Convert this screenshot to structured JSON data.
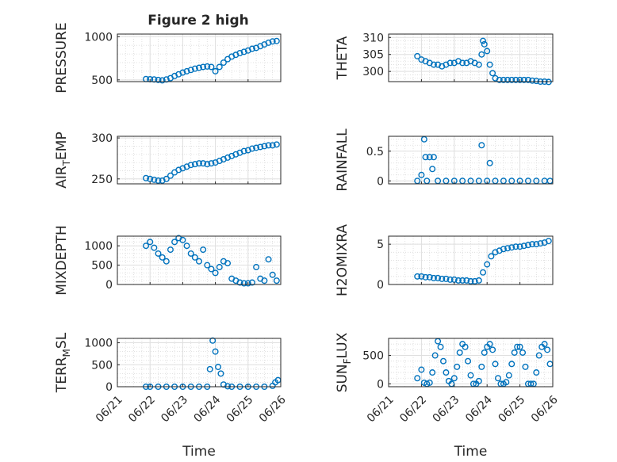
{
  "figure": {
    "title": "Figure 2 high",
    "marker_color": "#0072BD"
  },
  "chart_data": [
    {
      "type": "scatter",
      "ylabel": "PRESSURE",
      "xlim": [
        "06/21",
        "06/26"
      ],
      "ylim": [
        480,
        1030
      ],
      "yticks": [
        500,
        1000
      ],
      "xtick_labels": [],
      "x": [
        "06/21 21:00",
        "06/22 00:00",
        "06/22 03:00",
        "06/22 06:00",
        "06/22 09:00",
        "06/22 12:00",
        "06/22 15:00",
        "06/22 18:00",
        "06/22 21:00",
        "06/23 00:00",
        "06/23 03:00",
        "06/23 06:00",
        "06/23 09:00",
        "06/23 12:00",
        "06/23 15:00",
        "06/23 18:00",
        "06/23 21:00",
        "06/24 00:00",
        "06/24 03:00",
        "06/24 06:00",
        "06/24 09:00",
        "06/24 12:00",
        "06/24 15:00",
        "06/24 18:00",
        "06/24 21:00",
        "06/25 00:00",
        "06/25 03:00",
        "06/25 06:00",
        "06/25 09:00",
        "06/25 12:00",
        "06/25 15:00",
        "06/25 18:00",
        "06/25 21:00"
      ],
      "y": [
        510,
        508,
        505,
        500,
        495,
        505,
        520,
        545,
        565,
        585,
        600,
        615,
        630,
        640,
        650,
        655,
        650,
        600,
        650,
        700,
        740,
        770,
        790,
        810,
        825,
        840,
        860,
        870,
        890,
        910,
        930,
        945,
        950
      ]
    },
    {
      "type": "scatter",
      "ylabel": "THETA",
      "xlim": [
        "06/21",
        "06/26"
      ],
      "ylim": [
        297,
        311
      ],
      "yticks": [
        300,
        305,
        310
      ],
      "xtick_labels": [],
      "x": [
        "06/21 21:00",
        "06/22 00:00",
        "06/22 03:00",
        "06/22 06:00",
        "06/22 09:00",
        "06/22 12:00",
        "06/22 15:00",
        "06/22 18:00",
        "06/22 21:00",
        "06/23 00:00",
        "06/23 03:00",
        "06/23 06:00",
        "06/23 09:00",
        "06/23 12:00",
        "06/23 15:00",
        "06/23 18:00",
        "06/23 20:00",
        "06/23 21:00",
        "06/23 22:00",
        "06/24 00:00",
        "06/24 02:00",
        "06/24 04:00",
        "06/24 06:00",
        "06/24 09:00",
        "06/24 12:00",
        "06/24 15:00",
        "06/24 18:00",
        "06/24 21:00",
        "06/25 00:00",
        "06/25 03:00",
        "06/25 06:00",
        "06/25 09:00",
        "06/25 12:00",
        "06/25 15:00",
        "06/25 18:00",
        "06/25 21:00"
      ],
      "y": [
        304.5,
        303.5,
        303,
        302.5,
        302,
        302,
        301.5,
        302,
        302.5,
        302.5,
        303,
        302.5,
        302.5,
        303,
        302.5,
        302,
        305,
        309,
        308,
        306,
        302,
        299.5,
        298,
        297.5,
        297.5,
        297.5,
        297.5,
        297.5,
        297.5,
        297.5,
        297.5,
        297.3,
        297.2,
        297,
        297,
        296.9
      ]
    },
    {
      "type": "scatter",
      "ylabel": "AIR_TEMP",
      "ylabel_main": "AIR",
      "ylabel_sub": "T",
      "ylabel_tail": "EMP",
      "xlim": [
        "06/21",
        "06/26"
      ],
      "ylim": [
        244,
        302
      ],
      "yticks": [
        250,
        300
      ],
      "xtick_labels": [],
      "x": [
        "06/21 21:00",
        "06/22 00:00",
        "06/22 03:00",
        "06/22 06:00",
        "06/22 09:00",
        "06/22 12:00",
        "06/22 15:00",
        "06/22 18:00",
        "06/22 21:00",
        "06/23 00:00",
        "06/23 03:00",
        "06/23 06:00",
        "06/23 09:00",
        "06/23 12:00",
        "06/23 15:00",
        "06/23 18:00",
        "06/23 21:00",
        "06/24 00:00",
        "06/24 03:00",
        "06/24 06:00",
        "06/24 09:00",
        "06/24 12:00",
        "06/24 15:00",
        "06/24 18:00",
        "06/24 21:00",
        "06/25 00:00",
        "06/25 03:00",
        "06/25 06:00",
        "06/25 09:00",
        "06/25 12:00",
        "06/25 15:00",
        "06/25 18:00",
        "06/25 21:00"
      ],
      "y": [
        251,
        250,
        249,
        248,
        248,
        250,
        254,
        258,
        261,
        263,
        265,
        267,
        268,
        269,
        269,
        268,
        269,
        270,
        272,
        274,
        276,
        278,
        280,
        282,
        284,
        285,
        287,
        288,
        289,
        290,
        291,
        291,
        292
      ]
    },
    {
      "type": "scatter",
      "ylabel": "RAINFALL",
      "xlim": [
        "06/21",
        "06/26"
      ],
      "ylim": [
        -0.05,
        0.75
      ],
      "yticks": [
        0,
        0.5
      ],
      "xtick_labels": [],
      "x": [
        "06/21 21:00",
        "06/22 00:00",
        "06/22 02:00",
        "06/22 03:00",
        "06/22 04:00",
        "06/22 06:00",
        "06/22 08:00",
        "06/22 09:00",
        "06/22 12:00",
        "06/22 18:00",
        "06/23 00:00",
        "06/23 06:00",
        "06/23 12:00",
        "06/23 18:00",
        "06/23 20:00",
        "06/24 00:00",
        "06/24 02:00",
        "06/24 06:00",
        "06/24 12:00",
        "06/24 18:00",
        "06/25 00:00",
        "06/25 06:00",
        "06/25 12:00",
        "06/25 18:00",
        "06/25 22:00"
      ],
      "y": [
        0,
        0.1,
        0.7,
        0.4,
        0,
        0.4,
        0.2,
        0.4,
        0,
        0,
        0,
        0,
        0,
        0,
        0.6,
        0,
        0.3,
        0,
        0,
        0,
        0,
        0,
        0,
        0,
        0
      ]
    },
    {
      "type": "scatter",
      "ylabel": "MIXDEPTH",
      "xlim": [
        "06/21",
        "06/26"
      ],
      "ylim": [
        0,
        1250
      ],
      "yticks": [
        0,
        500,
        1000
      ],
      "xtick_labels": [],
      "x": [
        "06/21 21:00",
        "06/22 00:00",
        "06/22 03:00",
        "06/22 06:00",
        "06/22 09:00",
        "06/22 12:00",
        "06/22 15:00",
        "06/22 18:00",
        "06/22 21:00",
        "06/23 00:00",
        "06/23 03:00",
        "06/23 06:00",
        "06/23 09:00",
        "06/23 12:00",
        "06/23 15:00",
        "06/23 18:00",
        "06/23 21:00",
        "06/24 00:00",
        "06/24 03:00",
        "06/24 06:00",
        "06/24 09:00",
        "06/24 12:00",
        "06/24 15:00",
        "06/24 18:00",
        "06/24 21:00",
        "06/25 00:00",
        "06/25 03:00",
        "06/25 06:00",
        "06/25 09:00",
        "06/25 12:00",
        "06/25 15:00",
        "06/25 18:00",
        "06/25 21:00"
      ],
      "y": [
        1000,
        1100,
        950,
        800,
        700,
        600,
        900,
        1100,
        1200,
        1150,
        1000,
        800,
        700,
        600,
        900,
        500,
        400,
        300,
        450,
        600,
        550,
        150,
        100,
        50,
        30,
        30,
        50,
        450,
        150,
        100,
        650,
        250,
        100
      ]
    },
    {
      "type": "scatter",
      "ylabel": "H2OMIXRA",
      "xlim": [
        "06/21",
        "06/26"
      ],
      "ylim": [
        0,
        6
      ],
      "yticks": [
        0,
        5
      ],
      "xtick_labels": [],
      "x": [
        "06/21 21:00",
        "06/22 00:00",
        "06/22 03:00",
        "06/22 06:00",
        "06/22 09:00",
        "06/22 12:00",
        "06/22 15:00",
        "06/22 18:00",
        "06/22 21:00",
        "06/23 00:00",
        "06/23 03:00",
        "06/23 06:00",
        "06/23 09:00",
        "06/23 12:00",
        "06/23 15:00",
        "06/23 18:00",
        "06/23 21:00",
        "06/24 00:00",
        "06/24 03:00",
        "06/24 06:00",
        "06/24 09:00",
        "06/24 12:00",
        "06/24 15:00",
        "06/24 18:00",
        "06/24 21:00",
        "06/25 00:00",
        "06/25 03:00",
        "06/25 06:00",
        "06/25 09:00",
        "06/25 12:00",
        "06/25 15:00",
        "06/25 18:00",
        "06/25 21:00"
      ],
      "y": [
        1.0,
        1.0,
        0.9,
        0.9,
        0.8,
        0.8,
        0.7,
        0.7,
        0.6,
        0.6,
        0.5,
        0.5,
        0.5,
        0.4,
        0.4,
        0.5,
        1.5,
        2.5,
        3.5,
        4.0,
        4.2,
        4.4,
        4.5,
        4.6,
        4.7,
        4.7,
        4.8,
        4.9,
        5.0,
        5.0,
        5.1,
        5.2,
        5.4
      ]
    },
    {
      "type": "scatter",
      "ylabel": "TERR_MSL",
      "ylabel_main": "TERR",
      "ylabel_sub": "M",
      "ylabel_tail": "SL",
      "xlim": [
        "06/21",
        "06/26"
      ],
      "ylim": [
        0,
        1100
      ],
      "yticks": [
        0,
        500,
        1000
      ],
      "xtick_labels": [
        "06/21",
        "06/22",
        "06/23",
        "06/24",
        "06/25",
        "06/26"
      ],
      "xlabel": "Time",
      "x": [
        "06/21 21:00",
        "06/22 00:00",
        "06/22 06:00",
        "06/22 12:00",
        "06/22 18:00",
        "06/23 00:00",
        "06/23 06:00",
        "06/23 12:00",
        "06/23 18:00",
        "06/23 20:00",
        "06/23 22:00",
        "06/24 00:00",
        "06/24 02:00",
        "06/24 04:00",
        "06/24 06:00",
        "06/24 09:00",
        "06/24 12:00",
        "06/24 18:00",
        "06/25 00:00",
        "06/25 06:00",
        "06/25 12:00",
        "06/25 18:00",
        "06/25 20:00",
        "06/25 22:00"
      ],
      "y": [
        0,
        0,
        0,
        0,
        0,
        0,
        0,
        0,
        0,
        400,
        1050,
        800,
        450,
        300,
        50,
        10,
        0,
        0,
        0,
        0,
        0,
        20,
        100,
        150
      ]
    },
    {
      "type": "scatter",
      "ylabel": "SUN_FLUX",
      "ylabel_main": "SUN",
      "ylabel_sub": "F",
      "ylabel_tail": "LUX",
      "xlim": [
        "06/21",
        "06/26"
      ],
      "ylim": [
        -50,
        800
      ],
      "yticks": [
        0,
        500
      ],
      "xtick_labels": [
        "06/21",
        "06/22",
        "06/23",
        "06/24",
        "06/25",
        "06/26"
      ],
      "xlabel": "Time",
      "x": [
        "06/21 21:00",
        "06/22 00:00",
        "06/22 02:00",
        "06/22 04:00",
        "06/22 06:00",
        "06/22 08:00",
        "06/22 10:00",
        "06/22 12:00",
        "06/22 14:00",
        "06/22 16:00",
        "06/22 18:00",
        "06/22 20:00",
        "06/22 22:00",
        "06/23 00:00",
        "06/23 02:00",
        "06/23 04:00",
        "06/23 06:00",
        "06/23 08:00",
        "06/23 10:00",
        "06/23 12:00",
        "06/23 14:00",
        "06/23 16:00",
        "06/23 18:00",
        "06/23 20:00",
        "06/23 22:00",
        "06/24 00:00",
        "06/24 02:00",
        "06/24 04:00",
        "06/24 06:00",
        "06/24 08:00",
        "06/24 10:00",
        "06/24 12:00",
        "06/24 14:00",
        "06/24 16:00",
        "06/24 18:00",
        "06/24 20:00",
        "06/24 22:00",
        "06/25 00:00",
        "06/25 02:00",
        "06/25 04:00",
        "06/25 06:00",
        "06/25 08:00",
        "06/25 10:00",
        "06/25 12:00",
        "06/25 14:00",
        "06/25 16:00",
        "06/25 18:00",
        "06/25 20:00",
        "06/25 22:00"
      ],
      "y": [
        100,
        250,
        20,
        0,
        20,
        200,
        500,
        750,
        650,
        400,
        200,
        50,
        0,
        100,
        300,
        550,
        700,
        650,
        400,
        150,
        0,
        0,
        50,
        300,
        550,
        650,
        700,
        600,
        350,
        100,
        0,
        0,
        30,
        150,
        350,
        550,
        650,
        650,
        550,
        300,
        0,
        0,
        0,
        200,
        500,
        650,
        700,
        600,
        350
      ]
    }
  ]
}
